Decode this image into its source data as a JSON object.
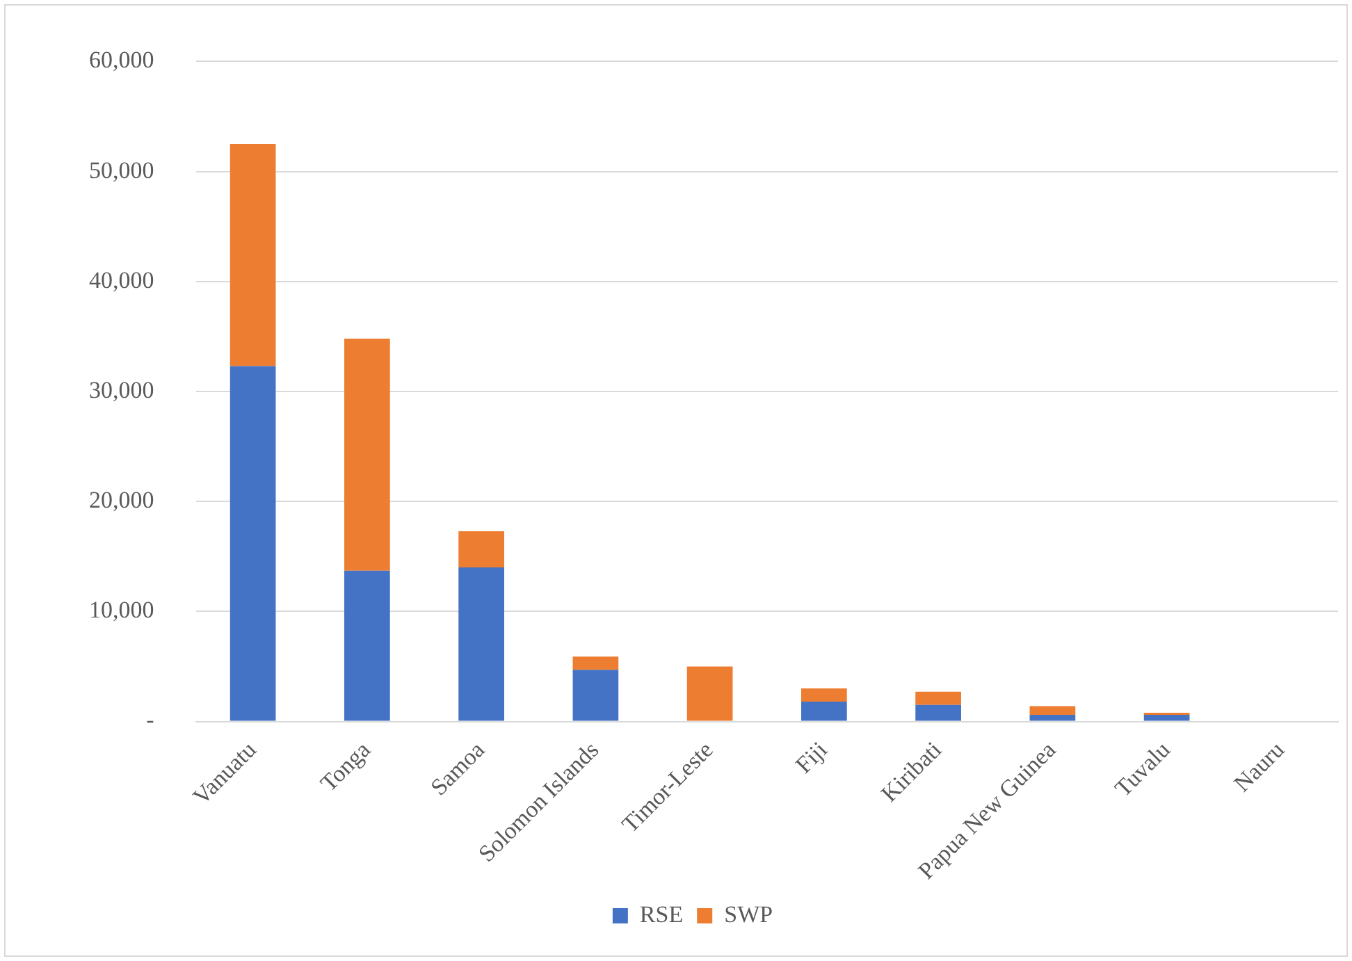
{
  "chart_data": {
    "type": "bar",
    "stacked": true,
    "categories": [
      "Vanuatu",
      "Tonga",
      "Samoa",
      "Solomon Islands",
      "Timor-Leste",
      "Fiji",
      "Kiribati",
      "Papua New Guinea",
      "Tuvalu",
      "Nauru"
    ],
    "series": [
      {
        "name": "RSE",
        "color": "#4472c4",
        "values": [
          32300,
          13700,
          14000,
          4700,
          0,
          1800,
          1500,
          600,
          600,
          0
        ]
      },
      {
        "name": "SWP",
        "color": "#ed7d31",
        "values": [
          20200,
          21100,
          3300,
          1200,
          5000,
          1200,
          1200,
          800,
          200,
          0
        ]
      }
    ],
    "ylim": [
      0,
      60000
    ],
    "yticks": [
      {
        "value": 0,
        "label": "-"
      },
      {
        "value": 10000,
        "label": "10,000"
      },
      {
        "value": 20000,
        "label": "20,000"
      },
      {
        "value": 30000,
        "label": "30,000"
      },
      {
        "value": 40000,
        "label": "40,000"
      },
      {
        "value": 50000,
        "label": "50,000"
      },
      {
        "value": 60000,
        "label": "60,000"
      }
    ],
    "grid": "y",
    "legend": "bottom"
  }
}
